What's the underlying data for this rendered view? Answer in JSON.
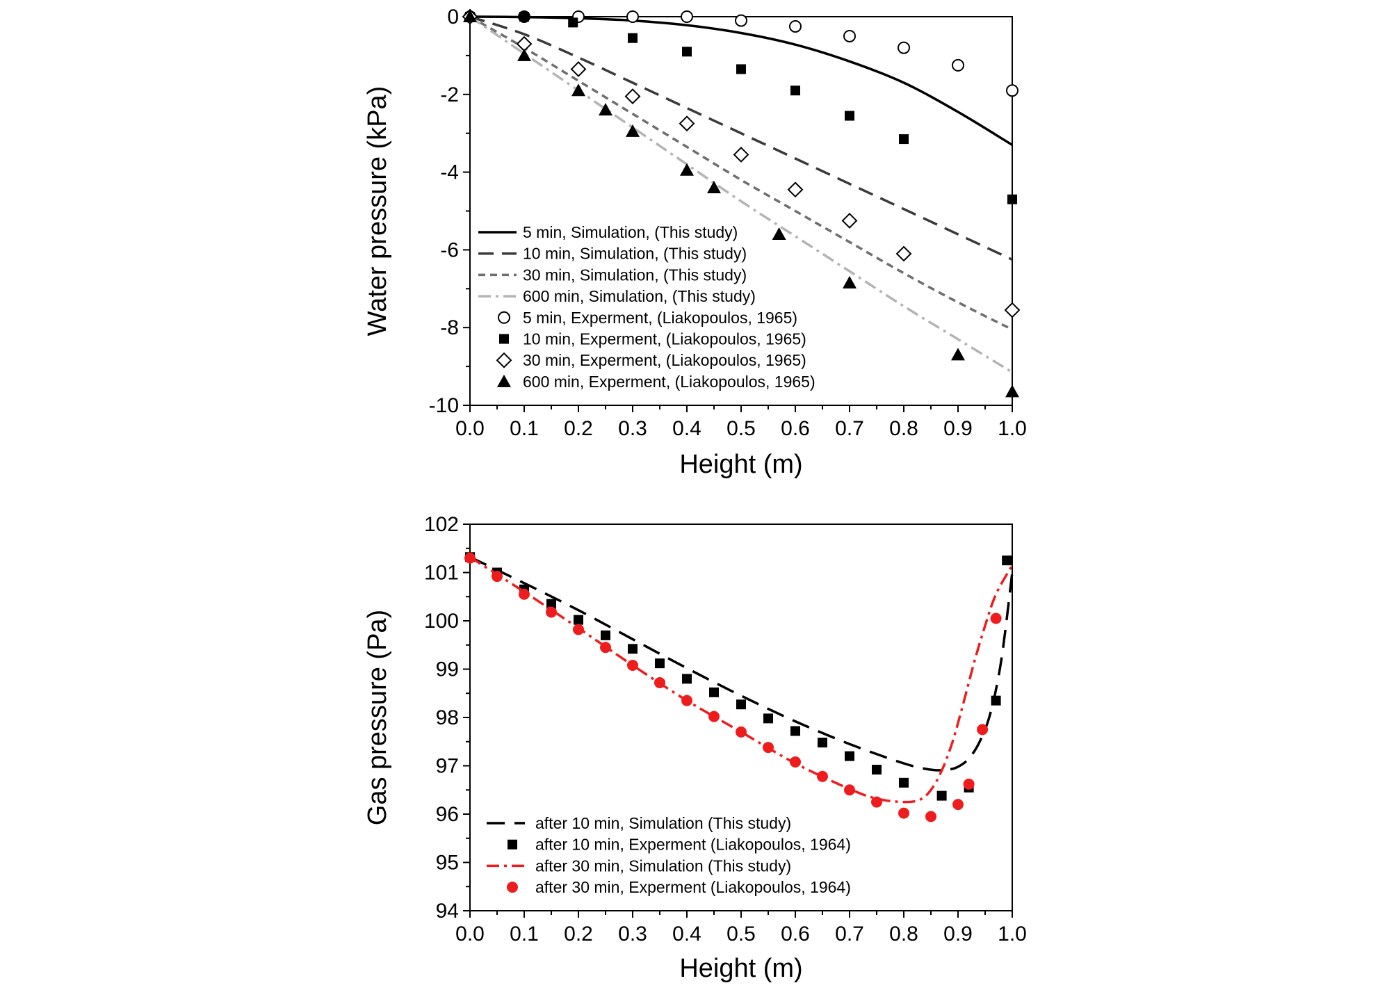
{
  "chart_data": [
    {
      "type": "line",
      "xlabel": "Height (m)",
      "ylabel": "Water pressure (kPa)",
      "xlim": [
        0.0,
        1.0
      ],
      "ylim": [
        -10,
        0
      ],
      "xticks": [
        "0.0",
        "0.1",
        "0.2",
        "0.3",
        "0.4",
        "0.5",
        "0.6",
        "0.7",
        "0.8",
        "0.9",
        "1.0"
      ],
      "xtick_values": [
        0,
        0.1,
        0.2,
        0.3,
        0.4,
        0.5,
        0.6,
        0.7,
        0.8,
        0.9,
        1.0
      ],
      "yticks": [
        "0",
        "-2",
        "-4",
        "-6",
        "-8",
        "-10"
      ],
      "ytick_values": [
        0,
        -2,
        -4,
        -6,
        -8,
        -10
      ],
      "grid": false,
      "legend_position": "bottom-left",
      "series": [
        {
          "name": "5 min, Simulation, (This study)",
          "kind": "line",
          "style": "solid",
          "color": "#000000",
          "x": [
            0,
            0.1,
            0.2,
            0.3,
            0.4,
            0.5,
            0.6,
            0.7,
            0.8,
            0.9,
            1.0
          ],
          "y": [
            0,
            -0.01,
            -0.04,
            -0.1,
            -0.22,
            -0.42,
            -0.72,
            -1.15,
            -1.7,
            -2.45,
            -3.3
          ]
        },
        {
          "name": "10 min, Simulation, (This study)",
          "kind": "line",
          "style": "dash",
          "color": "#3a3a3a",
          "x": [
            0,
            0.1,
            0.2,
            0.3,
            0.4,
            0.5,
            0.6,
            0.7,
            0.8,
            0.9,
            1.0
          ],
          "y": [
            0,
            -0.45,
            -1.05,
            -1.7,
            -2.35,
            -3.0,
            -3.65,
            -4.3,
            -4.95,
            -5.6,
            -6.25
          ]
        },
        {
          "name": "30 min, Simulation, (This study)",
          "kind": "line",
          "style": "short-dash",
          "color": "#6e6e6e",
          "x": [
            0,
            0.1,
            0.2,
            0.3,
            0.4,
            0.5,
            0.6,
            0.7,
            0.8,
            0.9,
            1.0
          ],
          "y": [
            0,
            -0.8,
            -1.65,
            -2.5,
            -3.35,
            -4.2,
            -5.0,
            -5.8,
            -6.6,
            -7.35,
            -8.05
          ]
        },
        {
          "name": "600 min, Simulation, (This study)",
          "kind": "line",
          "style": "dash-dot",
          "color": "#b4b4b4",
          "x": [
            0,
            0.1,
            0.2,
            0.3,
            0.4,
            0.5,
            0.6,
            0.7,
            0.8,
            0.9,
            1.0
          ],
          "y": [
            0,
            -0.95,
            -1.9,
            -2.85,
            -3.8,
            -4.75,
            -5.65,
            -6.55,
            -7.45,
            -8.3,
            -9.15
          ]
        },
        {
          "name": "5 min, Experment, (Liakopoulos, 1965)",
          "kind": "marker",
          "marker": "circle-open",
          "color": "#000000",
          "x": [
            0,
            0.1,
            0.2,
            0.3,
            0.4,
            0.5,
            0.6,
            0.7,
            0.8,
            0.9,
            1.0
          ],
          "y": [
            0,
            0,
            0,
            0,
            0,
            -0.1,
            -0.25,
            -0.5,
            -0.8,
            -1.25,
            -1.9
          ]
        },
        {
          "name": "10 min, Experment, (Liakopoulos, 1965)",
          "kind": "marker",
          "marker": "square-filled",
          "color": "#000000",
          "x": [
            0,
            0.1,
            0.19,
            0.3,
            0.4,
            0.5,
            0.6,
            0.7,
            0.8,
            1.0
          ],
          "y": [
            0,
            0,
            -0.15,
            -0.55,
            -0.9,
            -1.35,
            -1.9,
            -2.55,
            -3.15,
            -4.7
          ]
        },
        {
          "name": "30 min, Experment, (Liakopoulos, 1965)",
          "kind": "marker",
          "marker": "diamond-open",
          "color": "#000000",
          "x": [
            0,
            0.1,
            0.2,
            0.3,
            0.4,
            0.5,
            0.6,
            0.7,
            0.8,
            1.0
          ],
          "y": [
            0,
            -0.7,
            -1.35,
            -2.05,
            -2.75,
            -3.55,
            -4.45,
            -5.25,
            -6.1,
            -7.55
          ]
        },
        {
          "name": "600 min, Experment, (Liakopoulos, 1965)",
          "kind": "marker",
          "marker": "triangle-filled",
          "color": "#000000",
          "x": [
            0,
            0.1,
            0.2,
            0.25,
            0.3,
            0.4,
            0.45,
            0.57,
            0.7,
            0.9,
            1.0
          ],
          "y": [
            0,
            -1.0,
            -1.9,
            -2.4,
            -2.95,
            -3.95,
            -4.4,
            -5.6,
            -6.85,
            -8.7,
            -9.65
          ]
        }
      ]
    },
    {
      "type": "line",
      "xlabel": "Height (m)",
      "ylabel": "Gas pressure (Pa)",
      "xlim": [
        0.0,
        1.0
      ],
      "ylim": [
        94,
        102
      ],
      "xticks": [
        "0.0",
        "0.1",
        "0.2",
        "0.3",
        "0.4",
        "0.5",
        "0.6",
        "0.7",
        "0.8",
        "0.9",
        "1.0"
      ],
      "xtick_values": [
        0,
        0.1,
        0.2,
        0.3,
        0.4,
        0.5,
        0.6,
        0.7,
        0.8,
        0.9,
        1.0
      ],
      "yticks": [
        "102",
        "101",
        "100",
        "99",
        "98",
        "97",
        "96",
        "95",
        "94"
      ],
      "ytick_values": [
        102,
        101,
        100,
        99,
        98,
        97,
        96,
        95,
        94
      ],
      "grid": false,
      "legend_position": "bottom-left",
      "series": [
        {
          "name": "after 10 min, Simulation (This study)",
          "kind": "line",
          "style": "long-dash",
          "color": "#000000",
          "x": [
            0,
            0.1,
            0.2,
            0.3,
            0.4,
            0.5,
            0.6,
            0.7,
            0.8,
            0.85,
            0.88,
            0.9,
            0.92,
            0.94,
            0.96,
            0.98,
            1.0
          ],
          "y": [
            101.32,
            100.78,
            100.22,
            99.62,
            99.02,
            98.45,
            97.92,
            97.45,
            97.05,
            96.92,
            96.92,
            96.98,
            97.15,
            97.5,
            98.1,
            99.2,
            101.0
          ]
        },
        {
          "name": "after 10 min, Experment (Liakopoulos, 1964)",
          "kind": "marker",
          "marker": "square-filled",
          "color": "#000000",
          "x": [
            0,
            0.05,
            0.1,
            0.15,
            0.2,
            0.25,
            0.3,
            0.35,
            0.4,
            0.45,
            0.5,
            0.55,
            0.6,
            0.65,
            0.7,
            0.75,
            0.8,
            0.87,
            0.92,
            0.97,
            0.99
          ],
          "y": [
            101.32,
            101.0,
            100.65,
            100.35,
            100.02,
            99.7,
            99.42,
            99.12,
            98.8,
            98.52,
            98.27,
            97.98,
            97.72,
            97.48,
            97.2,
            96.92,
            96.65,
            96.38,
            96.55,
            98.35,
            101.25
          ]
        },
        {
          "name": "after 30 min, Simulation (This study)",
          "kind": "line",
          "style": "dash-dot",
          "color": "#ee1c1c",
          "x": [
            0,
            0.1,
            0.2,
            0.3,
            0.4,
            0.5,
            0.6,
            0.7,
            0.75,
            0.8,
            0.83,
            0.85,
            0.87,
            0.89,
            0.91,
            0.93,
            0.95,
            0.97,
            1.0
          ],
          "y": [
            101.32,
            100.6,
            99.85,
            99.08,
            98.35,
            97.7,
            97.05,
            96.52,
            96.32,
            96.25,
            96.3,
            96.5,
            96.9,
            97.5,
            98.3,
            99.15,
            99.9,
            100.55,
            101.15
          ]
        },
        {
          "name": "after 30 min, Experment (Liakopoulos, 1964)",
          "kind": "marker",
          "marker": "circle-filled",
          "color": "#ee1c1c",
          "x": [
            0,
            0.05,
            0.1,
            0.15,
            0.2,
            0.25,
            0.3,
            0.35,
            0.4,
            0.45,
            0.5,
            0.55,
            0.6,
            0.65,
            0.7,
            0.75,
            0.8,
            0.85,
            0.9,
            0.92,
            0.945,
            0.97
          ],
          "y": [
            101.3,
            100.92,
            100.55,
            100.18,
            99.82,
            99.45,
            99.08,
            98.72,
            98.35,
            98.02,
            97.7,
            97.38,
            97.08,
            96.78,
            96.5,
            96.25,
            96.02,
            95.95,
            96.2,
            96.62,
            97.75,
            100.05
          ]
        }
      ]
    }
  ]
}
